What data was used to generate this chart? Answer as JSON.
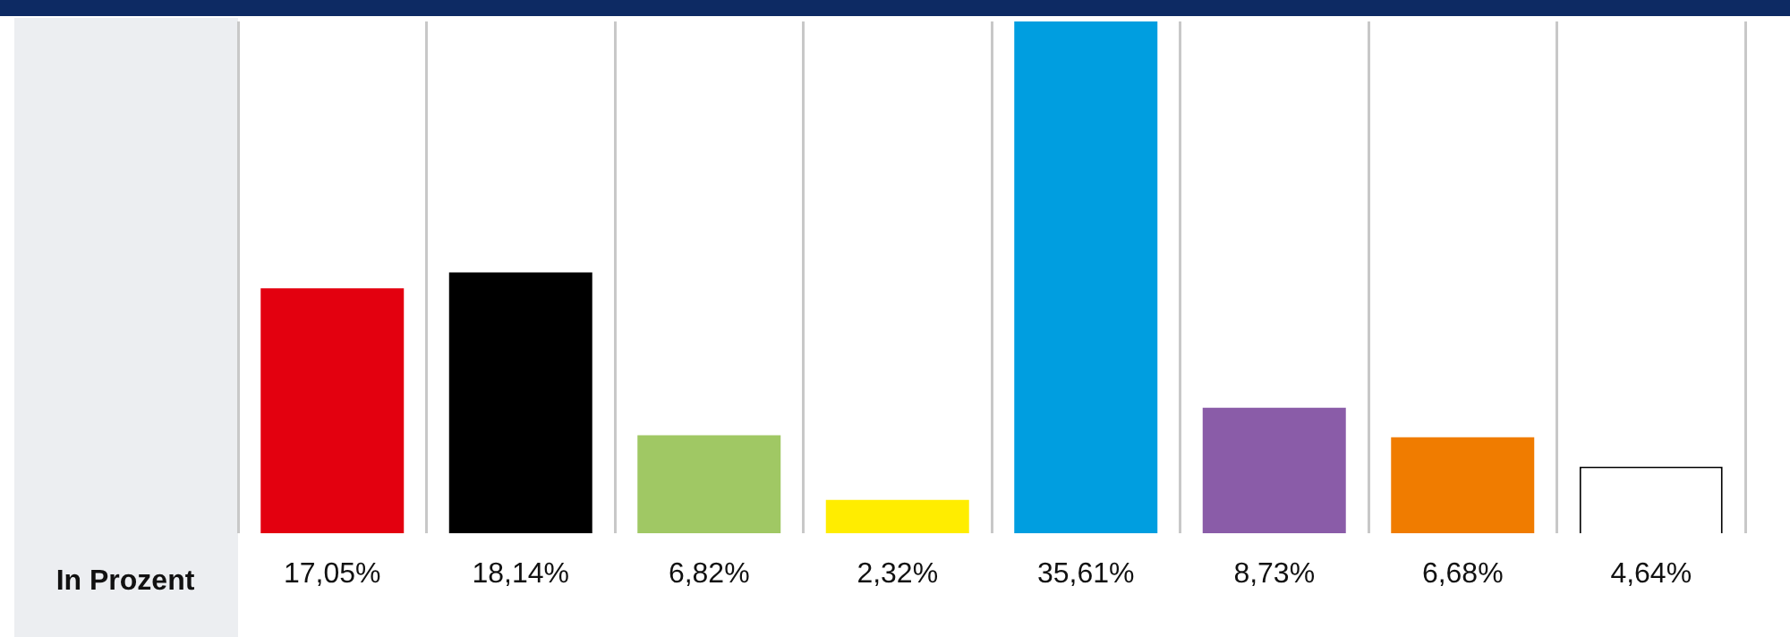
{
  "chart_data": {
    "type": "bar",
    "categories": [
      null,
      null,
      null,
      null,
      null,
      null,
      null,
      null
    ],
    "values": [
      17.05,
      18.14,
      6.82,
      2.32,
      35.61,
      8.73,
      6.68,
      4.64
    ],
    "value_labels": [
      "17,05%",
      "18,14%",
      "6,82%",
      "2,32%",
      "35,61%",
      "8,73%",
      "6,68%",
      "4,64%"
    ],
    "colors": [
      "#e3000f",
      "#000000",
      "#a0c864",
      "#ffed00",
      "#009ee0",
      "#8a5ca8",
      "#f07c00",
      "#ffffff"
    ],
    "grid": "x",
    "legend": false,
    "annotations": [
      "In Prozent"
    ]
  }
}
